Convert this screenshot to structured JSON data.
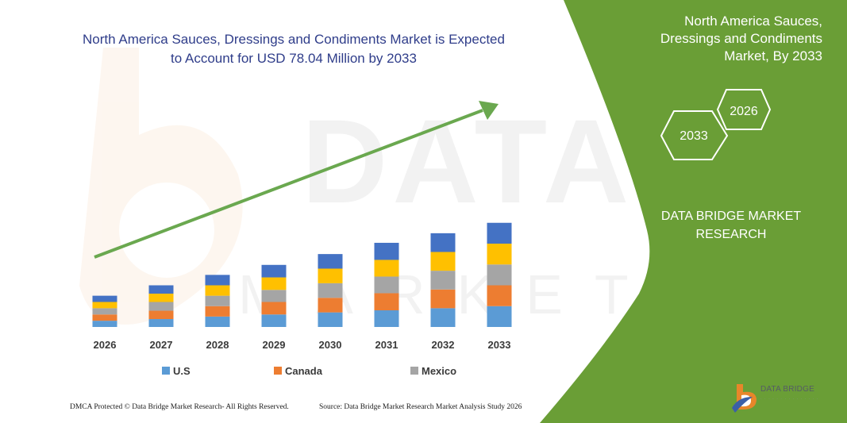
{
  "title": "North America Sauces, Dressings and Condiments Market is Expected to Account for USD 78.04 Million by 2033",
  "side_panel": {
    "title": "North America Sauces, Dressings and Condiments Market, By 2033",
    "badge_back": "2026",
    "badge_front": "2033",
    "brand": "DATA BRIDGE MARKET RESEARCH"
  },
  "footer": {
    "left": "DMCA Protected © Data Bridge Market Research- All Rights Reserved.",
    "right": "Source: Data Bridge Market Research Market Analysis Study 2026"
  },
  "logo": {
    "name": "DATA BRIDGE"
  },
  "colors": {
    "panel_green": "#6a9e36",
    "title_blue": "#2f3d8a",
    "arrow_green": "#6aa84f"
  },
  "chart_data": {
    "type": "bar",
    "stacked": true,
    "categories": [
      "2026",
      "2027",
      "2028",
      "2029",
      "2030",
      "2031",
      "2032",
      "2033"
    ],
    "series": [
      {
        "name": "U.S",
        "color": "#5b9bd5",
        "values": [
          15,
          19,
          25,
          30,
          35,
          40,
          45,
          50
        ]
      },
      {
        "name": "Canada",
        "color": "#ed7d31",
        "values": [
          15,
          20,
          25,
          30,
          35,
          41,
          45,
          50
        ]
      },
      {
        "name": "Mexico",
        "color": "#a5a5a5",
        "values": [
          15,
          21,
          25,
          29,
          35,
          40,
          45,
          50
        ]
      },
      {
        "name": "",
        "color": "#ffc000",
        "values": [
          15,
          20,
          25,
          30,
          35,
          40,
          45,
          50
        ]
      },
      {
        "name": "",
        "color": "#4472c4",
        "values": [
          15,
          20,
          25,
          30,
          35,
          41,
          45,
          50
        ]
      }
    ],
    "legend": [
      "U.S",
      "Canada",
      "Mexico"
    ],
    "legend_position": "bottom",
    "grid": false,
    "trend_arrow": true
  }
}
